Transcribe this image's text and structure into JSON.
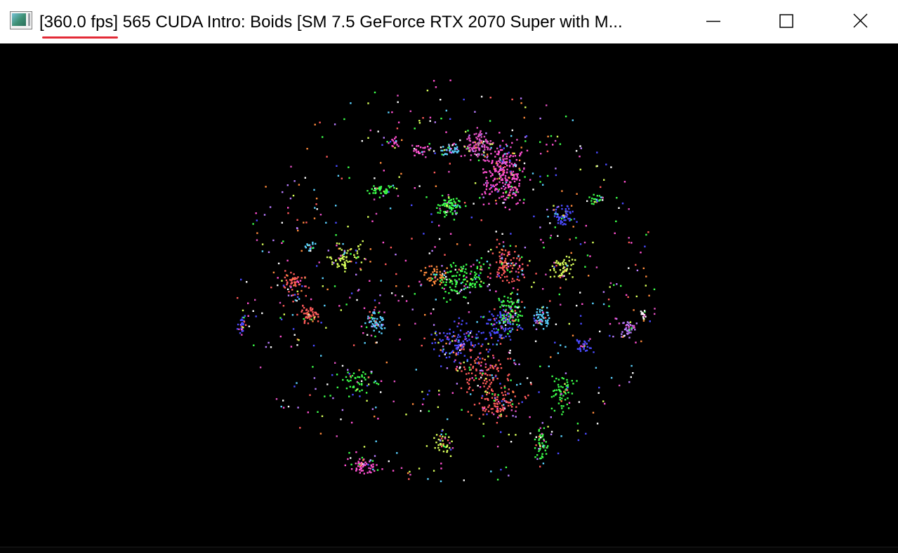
{
  "window": {
    "title_fps": "[360.0 fps]",
    "title_rest": " 565 CUDA Intro: Boids [SM 7.5 GeForce RTX 2070 Super with M...",
    "icon": "opengl-app-icon",
    "fps_underline_color": "#e32a36",
    "controls": {
      "minimize_icon": "minimize-icon",
      "maximize_icon": "maximize-icon",
      "close_icon": "close-icon"
    }
  },
  "simulation": {
    "background_color": "#000000",
    "particle_colors": [
      "#ff4fd0",
      "#e04fc0",
      "#3cff4a",
      "#4a4aff",
      "#ff5a5a",
      "#5ad2ff",
      "#d8ff5a",
      "#ffffff",
      "#b97cff",
      "#ff8a3c"
    ]
  }
}
